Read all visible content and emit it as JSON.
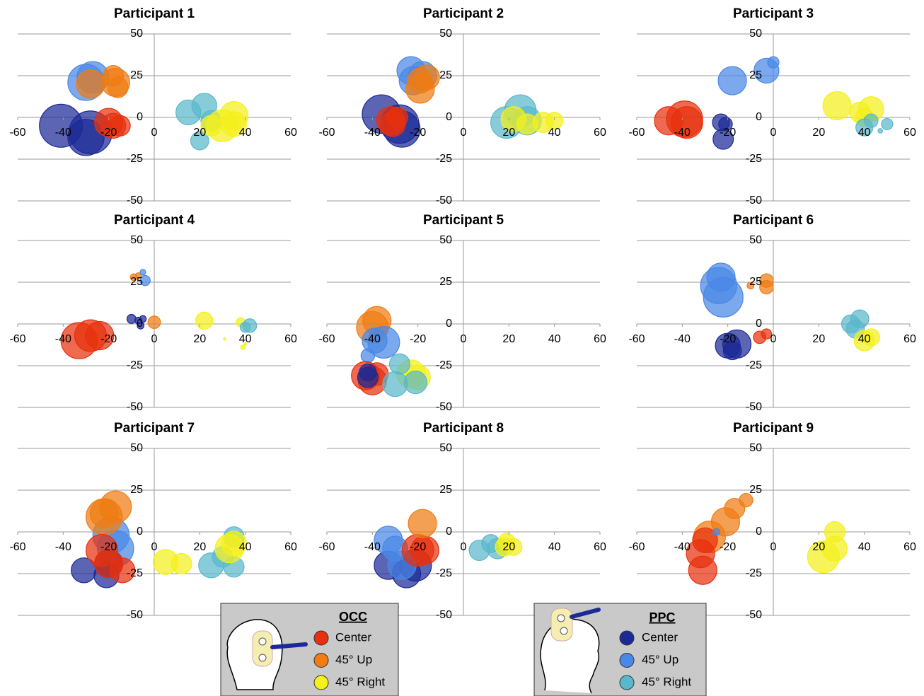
{
  "chart_data": [
    {
      "type": "bubble",
      "title": "Participant 1",
      "xlim": [
        -60,
        60
      ],
      "ylim": [
        -50,
        50
      ],
      "xticks": [
        -60,
        -40,
        -20,
        0,
        20,
        40,
        60
      ],
      "yticks": [
        -50,
        -25,
        0,
        25,
        50
      ],
      "series": [
        {
          "color": "#4a88e6",
          "x": [
            -30,
            -27
          ],
          "values": [
            21,
            24
          ],
          "sizes": [
            16,
            14
          ]
        },
        {
          "color": "#f07c12",
          "x": [
            -28,
            -17,
            -18,
            -16
          ],
          "values": [
            20,
            21,
            25,
            18
          ],
          "sizes": [
            12.5,
            12.5,
            9,
            9
          ]
        },
        {
          "color": "#1c2a96",
          "x": [
            -41,
            -28,
            -30
          ],
          "values": [
            -5,
            -9,
            -12
          ],
          "sizes": [
            19,
            19,
            16
          ]
        },
        {
          "color": "#e8300c",
          "x": [
            -20,
            -18,
            -15
          ],
          "values": [
            -3,
            -5,
            -5
          ],
          "sizes": [
            12.5,
            11,
            9
          ]
        },
        {
          "color": "#5ab8cc",
          "x": [
            15,
            22,
            20,
            25
          ],
          "values": [
            3,
            7,
            -14,
            -2
          ],
          "sizes": [
            11,
            11,
            8,
            9
          ]
        },
        {
          "color": "#f4f01c",
          "x": [
            35,
            30,
            35,
            25
          ],
          "values": [
            1,
            -5,
            -4,
            -5
          ],
          "sizes": [
            12.5,
            14,
            11,
            9
          ]
        }
      ]
    },
    {
      "type": "bubble",
      "title": "Participant 2",
      "xlim": [
        -60,
        60
      ],
      "ylim": [
        -50,
        50
      ],
      "xticks": [
        -60,
        -40,
        -20,
        0,
        20,
        40,
        60
      ],
      "yticks": [
        -50,
        -25,
        0,
        25,
        50
      ],
      "series": [
        {
          "color": "#4a88e6",
          "x": [
            -23,
            -18,
            -22
          ],
          "values": [
            28,
            25,
            22
          ],
          "sizes": [
            12.5,
            12.5,
            12.5
          ]
        },
        {
          "color": "#f07c12",
          "x": [
            -16,
            -19,
            -19
          ],
          "values": [
            24,
            22,
            17
          ],
          "sizes": [
            11,
            11,
            12.5
          ]
        },
        {
          "color": "#1c2a96",
          "x": [
            -36,
            -28,
            -27
          ],
          "values": [
            2,
            -4,
            -7
          ],
          "sizes": [
            17,
            17,
            16
          ]
        },
        {
          "color": "#e8300c",
          "x": [
            -32,
            -31,
            -29
          ],
          "values": [
            -2,
            -4,
            0
          ],
          "sizes": [
            12.5,
            11,
            9
          ]
        },
        {
          "color": "#5ab8cc",
          "x": [
            19,
            25,
            28
          ],
          "values": [
            -3,
            4,
            -2
          ],
          "sizes": [
            14,
            14,
            12.5
          ]
        },
        {
          "color": "#f4f01c",
          "x": [
            22,
            28,
            35,
            40
          ],
          "values": [
            -1,
            -4,
            -3,
            -2
          ],
          "sizes": [
            11,
            9,
            9,
            7.5
          ]
        }
      ]
    },
    {
      "type": "bubble",
      "title": "Participant 3",
      "xlim": [
        -60,
        60
      ],
      "ylim": [
        -50,
        50
      ],
      "xticks": [
        -60,
        -40,
        -20,
        0,
        20,
        40,
        60
      ],
      "yticks": [
        -50,
        -25,
        0,
        25,
        50
      ],
      "series": [
        {
          "color": "#4a88e6",
          "x": [
            -18,
            -3,
            0
          ],
          "values": [
            22,
            28,
            33
          ],
          "sizes": [
            12.5,
            11,
            5
          ]
        },
        {
          "color": "#e8300c",
          "x": [
            -46,
            -39,
            -38
          ],
          "values": [
            -2,
            -1,
            -3
          ],
          "sizes": [
            12.5,
            16,
            14
          ]
        },
        {
          "color": "#1c2a96",
          "x": [
            -23,
            -22,
            -21
          ],
          "values": [
            -3,
            -13,
            -4
          ],
          "sizes": [
            7.5,
            9,
            6
          ]
        },
        {
          "color": "#f4f01c",
          "x": [
            28,
            38,
            43,
            40
          ],
          "values": [
            7,
            3,
            5,
            0
          ],
          "sizes": [
            12.5,
            9,
            11,
            8
          ]
        },
        {
          "color": "#5ab8cc",
          "x": [
            40,
            43,
            50,
            47
          ],
          "values": [
            -6,
            -2,
            -4,
            -8
          ],
          "sizes": [
            7.5,
            6,
            5,
            2
          ]
        }
      ]
    },
    {
      "type": "bubble",
      "title": "Participant 4",
      "xlim": [
        -60,
        60
      ],
      "ylim": [
        -50,
        50
      ],
      "xticks": [
        -60,
        -40,
        -20,
        0,
        20,
        40,
        60
      ],
      "yticks": [
        -50,
        -25,
        0,
        25,
        50
      ],
      "series": [
        {
          "color": "#e8300c",
          "x": [
            -33,
            -28,
            -24
          ],
          "values": [
            -10,
            -7,
            -7
          ],
          "sizes": [
            16,
            14,
            12.5
          ]
        },
        {
          "color": "#1c2a96",
          "x": [
            -10,
            -7,
            -6,
            -5
          ],
          "values": [
            3,
            2,
            -1,
            3
          ],
          "sizes": [
            4,
            3,
            3,
            3
          ]
        },
        {
          "color": "#f07c12",
          "x": [
            -9,
            -7,
            0
          ],
          "values": [
            28,
            29,
            1
          ],
          "sizes": [
            3,
            2.5,
            5.5
          ]
        },
        {
          "color": "#4a88e6",
          "x": [
            -4,
            -5
          ],
          "values": [
            26,
            31
          ],
          "sizes": [
            4.5,
            2.5
          ]
        },
        {
          "color": "#f4f01c",
          "x": [
            22,
            38,
            31,
            39,
            40
          ],
          "values": [
            2,
            1,
            -9,
            -14,
            -12
          ],
          "sizes": [
            7.5,
            4,
            1,
            2,
            1
          ]
        },
        {
          "color": "#5ab8cc",
          "x": [
            42,
            40
          ],
          "values": [
            -1,
            -2
          ],
          "sizes": [
            6,
            4.5
          ]
        }
      ]
    },
    {
      "type": "bubble",
      "title": "Participant 5",
      "xlim": [
        -60,
        60
      ],
      "ylim": [
        -50,
        50
      ],
      "xticks": [
        -60,
        -40,
        -20,
        0,
        20,
        40,
        60
      ],
      "yticks": [
        -50,
        -25,
        0,
        25,
        50
      ],
      "series": [
        {
          "color": "#f07c12",
          "x": [
            -40,
            -38
          ],
          "values": [
            -2,
            2
          ],
          "sizes": [
            14,
            12.5
          ]
        },
        {
          "color": "#4a88e6",
          "x": [
            -39,
            -35,
            -42
          ],
          "values": [
            -10,
            -11,
            -19
          ],
          "sizes": [
            11,
            14,
            6
          ]
        },
        {
          "color": "#e8300c",
          "x": [
            -43,
            -40,
            -38
          ],
          "values": [
            -31,
            -34,
            -30
          ],
          "sizes": [
            12.5,
            12.5,
            10
          ]
        },
        {
          "color": "#1c2a96",
          "x": [
            -42,
            -42
          ],
          "values": [
            -32,
            -29
          ],
          "sizes": [
            9,
            7.5
          ]
        },
        {
          "color": "#f4f01c",
          "x": [
            -23,
            -20
          ],
          "values": [
            -30,
            -32
          ],
          "sizes": [
            12.5,
            11
          ]
        },
        {
          "color": "#5ab8cc",
          "x": [
            -28,
            -30,
            -21
          ],
          "values": [
            -24,
            -36,
            -35
          ],
          "sizes": [
            9,
            11,
            10
          ]
        }
      ]
    },
    {
      "type": "bubble",
      "title": "Participant 6",
      "xlim": [
        -60,
        60
      ],
      "ylim": [
        -50,
        50
      ],
      "xticks": [
        -60,
        -40,
        -20,
        0,
        20,
        40,
        60
      ],
      "yticks": [
        -50,
        -25,
        0,
        25,
        50
      ],
      "series": [
        {
          "color": "#4a88e6",
          "x": [
            -24,
            -22,
            -23
          ],
          "values": [
            23,
            16,
            28
          ],
          "sizes": [
            16,
            17.5,
            12.5
          ]
        },
        {
          "color": "#f07c12",
          "x": [
            -3,
            -3,
            -10
          ],
          "values": [
            26,
            22,
            23
          ],
          "sizes": [
            6,
            6,
            3
          ]
        },
        {
          "color": "#1c2a96",
          "x": [
            -20,
            -16,
            -18
          ],
          "values": [
            -13,
            -12,
            -16
          ],
          "sizes": [
            11,
            12.5,
            8
          ]
        },
        {
          "color": "#e8300c",
          "x": [
            -6,
            -3
          ],
          "values": [
            -8,
            -6
          ],
          "sizes": [
            5.5,
            4.5
          ]
        },
        {
          "color": "#5ab8cc",
          "x": [
            34,
            38,
            36
          ],
          "values": [
            0,
            3,
            -3
          ],
          "sizes": [
            8,
            8,
            8
          ]
        },
        {
          "color": "#f4f01c",
          "x": [
            40,
            43
          ],
          "values": [
            -10,
            -8
          ],
          "sizes": [
            9,
            7.5
          ]
        }
      ]
    },
    {
      "type": "bubble",
      "title": "Participant 7",
      "xlim": [
        -60,
        60
      ],
      "ylim": [
        -50,
        50
      ],
      "xticks": [
        -60,
        -40,
        -20,
        0,
        20,
        40,
        60
      ],
      "yticks": [
        -50,
        -25,
        0,
        25,
        50
      ],
      "series": [
        {
          "color": "#4a88e6",
          "x": [
            -19,
            -17
          ],
          "values": [
            -2,
            -10
          ],
          "sizes": [
            16,
            16
          ]
        },
        {
          "color": "#f07c12",
          "x": [
            -22,
            -17,
            -22
          ],
          "values": [
            9,
            15,
            11
          ],
          "sizes": [
            16,
            14,
            12.5
          ]
        },
        {
          "color": "#1c2a96",
          "x": [
            -31,
            -21,
            -20
          ],
          "values": [
            -23,
            -26,
            -19
          ],
          "sizes": [
            11,
            11,
            12.5
          ]
        },
        {
          "color": "#e8300c",
          "x": [
            -23,
            -20,
            -14
          ],
          "values": [
            -11,
            -19,
            -23
          ],
          "sizes": [
            14,
            12.5,
            11
          ]
        },
        {
          "color": "#5ab8cc",
          "x": [
            25,
            35,
            35,
            30
          ],
          "values": [
            -20,
            -21,
            -3,
            -15
          ],
          "sizes": [
            11,
            9,
            9,
            9
          ]
        },
        {
          "color": "#f4f01c",
          "x": [
            5,
            12,
            33,
            35
          ],
          "values": [
            -18,
            -19,
            -10,
            -7
          ],
          "sizes": [
            11,
            9,
            12.5,
            11
          ]
        }
      ]
    },
    {
      "type": "bubble",
      "title": "Participant 8",
      "xlim": [
        -60,
        60
      ],
      "ylim": [
        -50,
        50
      ],
      "xticks": [
        -60,
        -40,
        -20,
        0,
        20,
        40,
        60
      ],
      "yticks": [
        -50,
        -25,
        0,
        25,
        50
      ],
      "series": [
        {
          "color": "#1c2a96",
          "x": [
            -33,
            -21,
            -25
          ],
          "values": [
            -20,
            -20,
            -25
          ],
          "sizes": [
            12.5,
            14,
            12.5
          ]
        },
        {
          "color": "#4a88e6",
          "x": [
            -33,
            -30,
            -27
          ],
          "values": [
            -5,
            -10,
            -20
          ],
          "sizes": [
            12.5,
            11,
            12.5
          ]
        },
        {
          "color": "#e8300c",
          "x": [
            -20,
            -17
          ],
          "values": [
            -11,
            -11
          ],
          "sizes": [
            14,
            12.5
          ]
        },
        {
          "color": "#f07c12",
          "x": [
            -18
          ],
          "values": [
            5
          ],
          "sizes": [
            12.5
          ]
        },
        {
          "color": "#5ab8cc",
          "x": [
            7,
            12,
            15
          ],
          "values": [
            -11,
            -7,
            -10
          ],
          "sizes": [
            9,
            8,
            9
          ]
        },
        {
          "color": "#f4f01c",
          "x": [
            18,
            22,
            19
          ],
          "values": [
            -9,
            -9,
            -6
          ],
          "sizes": [
            8,
            7.5,
            7.5
          ]
        }
      ]
    },
    {
      "type": "bubble",
      "title": "Participant 9",
      "xlim": [
        -60,
        60
      ],
      "ylim": [
        -50,
        50
      ],
      "xticks": [
        -60,
        -40,
        -20,
        0,
        20,
        40,
        60
      ],
      "yticks": [
        -50,
        -25,
        0,
        25,
        50
      ],
      "series": [
        {
          "color": "#f07c12",
          "x": [
            -12,
            -17,
            -21,
            -28
          ],
          "values": [
            19,
            14,
            6,
            -3
          ],
          "sizes": [
            6,
            9,
            12.5,
            14
          ]
        },
        {
          "color": "#e8300c",
          "x": [
            -32,
            -31,
            -30
          ],
          "values": [
            -13,
            -23,
            -5
          ],
          "sizes": [
            12.5,
            12.5,
            11
          ]
        },
        {
          "color": "#4a88e6",
          "x": [
            -25
          ],
          "values": [
            0
          ],
          "sizes": [
            3
          ]
        },
        {
          "color": "#f4f01c",
          "x": [
            22,
            27,
            27
          ],
          "values": [
            -15,
            -10,
            0
          ],
          "sizes": [
            14,
            11,
            9
          ]
        }
      ]
    }
  ],
  "legends": [
    {
      "title": "OCC",
      "entries": [
        {
          "name": "Center",
          "color": "#e8300c"
        },
        {
          "name": "45° Up",
          "color": "#f07c12"
        },
        {
          "name": "45° Right",
          "color": "#f4f01c"
        }
      ]
    },
    {
      "title": "PPC",
      "entries": [
        {
          "name": "Center",
          "color": "#1c2a96"
        },
        {
          "name": "45° Up",
          "color": "#4a88e6"
        },
        {
          "name": "45° Right",
          "color": "#5ab8cc"
        }
      ]
    }
  ]
}
